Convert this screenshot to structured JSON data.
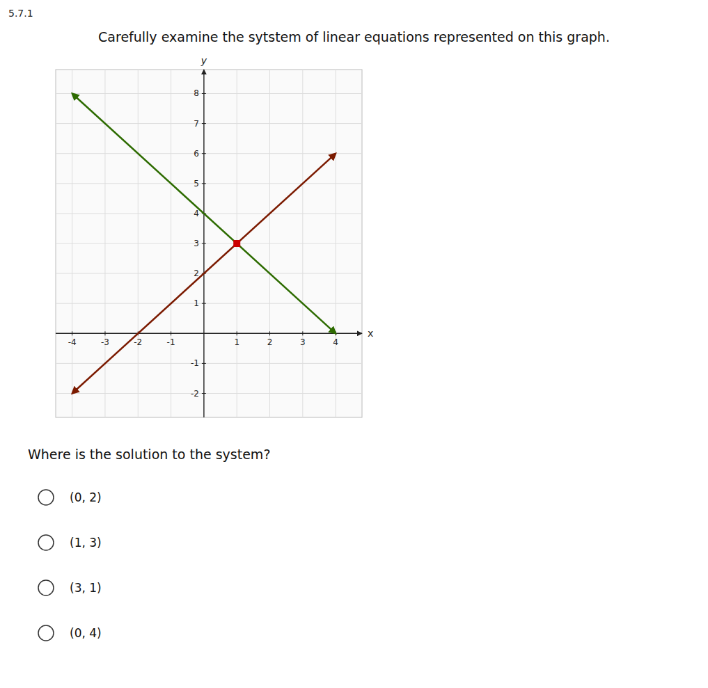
{
  "chart_data": {
    "type": "line",
    "header": "5.7.1",
    "title": "Carefully examine the sytstem of linear equations represented on this graph.",
    "x_label": "x",
    "y_label": "y",
    "question": "Where is the solution to the system?",
    "choices": [
      "(0, 2)",
      "(1, 3)",
      "(3, 1)",
      "(0, 4)"
    ],
    "grid": true,
    "xlim": [
      -4.5,
      4.8
    ],
    "ylim": [
      -2.8,
      8.8
    ],
    "xticks": [
      -4,
      -3,
      -2,
      -1,
      1,
      2,
      3,
      4
    ],
    "yticks": [
      -2,
      -1,
      1,
      2,
      3,
      4,
      5,
      6,
      7,
      8
    ],
    "series": [
      {
        "type": "line",
        "color": "#7B1A00",
        "x": [
          -4,
          4
        ],
        "values": [
          -2,
          6
        ]
      },
      {
        "type": "line",
        "color": "#2D6B00",
        "x": [
          -4,
          4
        ],
        "values": [
          8,
          0
        ]
      },
      {
        "type": "scatter",
        "marker": "square",
        "color": "#CC0000",
        "x": [
          1
        ],
        "values": [
          3
        ]
      }
    ]
  }
}
